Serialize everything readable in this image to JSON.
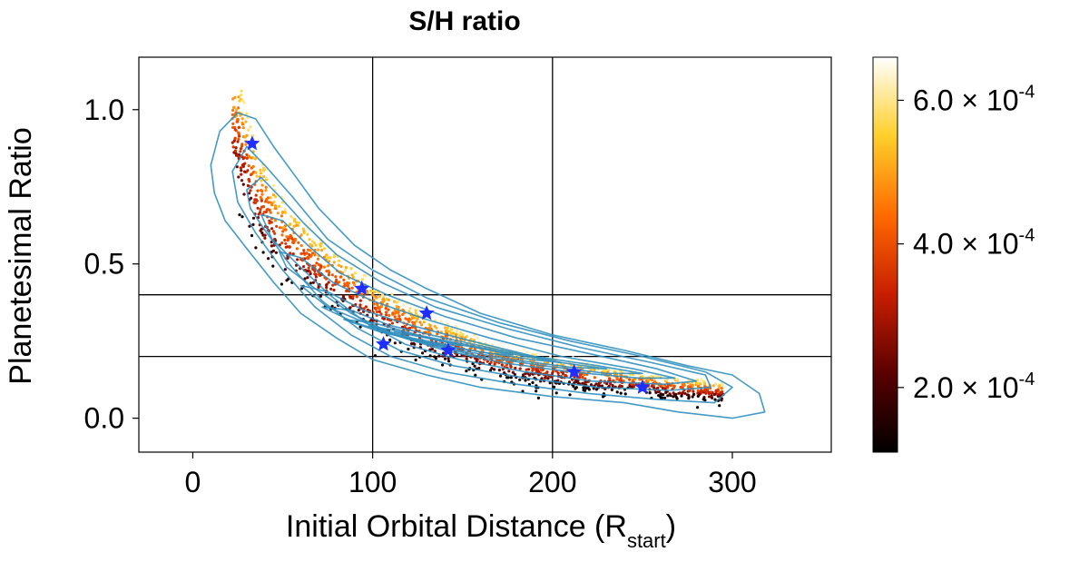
{
  "chart_data": {
    "type": "scatter",
    "title": "S/H ratio",
    "xlabel_main": "Initial Orbital Distance (R",
    "xlabel_sub": "start",
    "xlabel_close": ")",
    "ylabel": "Planetesimal Ratio",
    "xlim": [
      -30,
      355
    ],
    "ylim": [
      -0.11,
      1.17
    ],
    "x_ticks": [
      {
        "value": 0,
        "label": "0"
      },
      {
        "value": 100,
        "label": "100"
      },
      {
        "value": 200,
        "label": "200"
      },
      {
        "value": 300,
        "label": "300"
      }
    ],
    "y_ticks": [
      {
        "value": 0.0,
        "label": "0.0"
      },
      {
        "value": 0.5,
        "label": "0.5"
      },
      {
        "value": 1.0,
        "label": "1.0"
      }
    ],
    "reference_lines": {
      "vertical_x": [
        100,
        200
      ],
      "horizontal_y": [
        0.2,
        0.4
      ]
    },
    "colorbar": {
      "colormap": "afmhot",
      "range": [
        0.00011,
        0.00066
      ],
      "ticks": [
        {
          "value": 0.0002,
          "mantissa": "2.0 × 10",
          "exponent": "-4"
        },
        {
          "value": 0.0004,
          "mantissa": "4.0 × 10",
          "exponent": "-4"
        },
        {
          "value": 0.0006,
          "mantissa": "6.0 × 10",
          "exponent": "-4"
        }
      ]
    },
    "scatter_trend": {
      "x_range": [
        22,
        295
      ],
      "ridge": [
        [
          25,
          0.95
        ],
        [
          35,
          0.75
        ],
        [
          50,
          0.6
        ],
        [
          70,
          0.5
        ],
        [
          100,
          0.37
        ],
        [
          130,
          0.28
        ],
        [
          170,
          0.19
        ],
        [
          220,
          0.14
        ],
        [
          260,
          0.11
        ],
        [
          295,
          0.09
        ]
      ],
      "n_points": 1700
    },
    "contour_levels": [
      [
        [
          10,
          0.82
        ],
        [
          15,
          0.93
        ],
        [
          25,
          0.99
        ],
        [
          35,
          0.97
        ],
        [
          45,
          0.88
        ],
        [
          55,
          0.8
        ],
        [
          70,
          0.68
        ],
        [
          90,
          0.56
        ],
        [
          110,
          0.48
        ],
        [
          130,
          0.42
        ],
        [
          160,
          0.34
        ],
        [
          200,
          0.27
        ],
        [
          240,
          0.22
        ],
        [
          275,
          0.17
        ],
        [
          300,
          0.14
        ],
        [
          315,
          0.08
        ],
        [
          318,
          0.02
        ],
        [
          300,
          0.0
        ],
        [
          270,
          0.02
        ],
        [
          240,
          0.05
        ],
        [
          200,
          0.07
        ],
        [
          160,
          0.1
        ],
        [
          130,
          0.14
        ],
        [
          100,
          0.19
        ],
        [
          80,
          0.26
        ],
        [
          60,
          0.34
        ],
        [
          45,
          0.44
        ],
        [
          30,
          0.55
        ],
        [
          18,
          0.64
        ],
        [
          12,
          0.73
        ],
        [
          10,
          0.82
        ]
      ],
      [
        [
          22,
          0.8
        ],
        [
          30,
          0.88
        ],
        [
          40,
          0.82
        ],
        [
          55,
          0.72
        ],
        [
          75,
          0.58
        ],
        [
          100,
          0.48
        ],
        [
          130,
          0.39
        ],
        [
          170,
          0.31
        ],
        [
          210,
          0.25
        ],
        [
          250,
          0.2
        ],
        [
          285,
          0.15
        ],
        [
          300,
          0.1
        ],
        [
          290,
          0.05
        ],
        [
          260,
          0.06
        ],
        [
          220,
          0.08
        ],
        [
          180,
          0.11
        ],
        [
          140,
          0.15
        ],
        [
          110,
          0.2
        ],
        [
          88,
          0.27
        ],
        [
          68,
          0.36
        ],
        [
          50,
          0.48
        ],
        [
          35,
          0.6
        ],
        [
          25,
          0.7
        ],
        [
          22,
          0.8
        ]
      ],
      [
        [
          30,
          0.74
        ],
        [
          38,
          0.78
        ],
        [
          48,
          0.72
        ],
        [
          62,
          0.63
        ],
        [
          80,
          0.53
        ],
        [
          105,
          0.44
        ],
        [
          135,
          0.36
        ],
        [
          175,
          0.29
        ],
        [
          215,
          0.23
        ],
        [
          255,
          0.18
        ],
        [
          285,
          0.14
        ],
        [
          288,
          0.1
        ],
        [
          265,
          0.09
        ],
        [
          225,
          0.1
        ],
        [
          185,
          0.13
        ],
        [
          145,
          0.17
        ],
        [
          115,
          0.22
        ],
        [
          92,
          0.29
        ],
        [
          72,
          0.38
        ],
        [
          55,
          0.49
        ],
        [
          40,
          0.61
        ],
        [
          32,
          0.68
        ],
        [
          30,
          0.74
        ]
      ],
      [
        [
          38,
          0.66
        ],
        [
          50,
          0.64
        ],
        [
          64,
          0.56
        ],
        [
          82,
          0.47
        ],
        [
          108,
          0.4
        ],
        [
          140,
          0.33
        ],
        [
          180,
          0.26
        ],
        [
          220,
          0.21
        ],
        [
          258,
          0.16
        ],
        [
          280,
          0.12
        ],
        [
          262,
          0.11
        ],
        [
          222,
          0.12
        ],
        [
          185,
          0.15
        ],
        [
          148,
          0.19
        ],
        [
          118,
          0.24
        ],
        [
          96,
          0.31
        ],
        [
          76,
          0.4
        ],
        [
          58,
          0.5
        ],
        [
          44,
          0.58
        ],
        [
          38,
          0.66
        ]
      ],
      [
        [
          48,
          0.54
        ],
        [
          60,
          0.52
        ],
        [
          78,
          0.44
        ],
        [
          100,
          0.38
        ],
        [
          130,
          0.32
        ],
        [
          165,
          0.26
        ],
        [
          205,
          0.2
        ],
        [
          245,
          0.16
        ],
        [
          268,
          0.13
        ],
        [
          248,
          0.13
        ],
        [
          210,
          0.15
        ],
        [
          172,
          0.18
        ],
        [
          140,
          0.22
        ],
        [
          112,
          0.27
        ],
        [
          88,
          0.34
        ],
        [
          68,
          0.42
        ],
        [
          52,
          0.49
        ],
        [
          48,
          0.54
        ]
      ],
      [
        [
          60,
          0.43
        ],
        [
          75,
          0.41
        ],
        [
          95,
          0.35
        ],
        [
          122,
          0.3
        ],
        [
          155,
          0.25
        ],
        [
          190,
          0.2
        ],
        [
          225,
          0.17
        ],
        [
          250,
          0.145
        ],
        [
          230,
          0.145
        ],
        [
          195,
          0.17
        ],
        [
          160,
          0.2
        ],
        [
          130,
          0.24
        ],
        [
          100,
          0.3
        ],
        [
          75,
          0.36
        ],
        [
          60,
          0.43
        ]
      ],
      [
        [
          72,
          0.36
        ],
        [
          88,
          0.35
        ],
        [
          110,
          0.3
        ],
        [
          140,
          0.26
        ],
        [
          172,
          0.22
        ],
        [
          205,
          0.18
        ],
        [
          230,
          0.16
        ],
        [
          210,
          0.165
        ],
        [
          178,
          0.19
        ],
        [
          148,
          0.22
        ],
        [
          118,
          0.26
        ],
        [
          90,
          0.31
        ],
        [
          72,
          0.36
        ]
      ],
      [
        [
          84,
          0.32
        ],
        [
          100,
          0.31
        ],
        [
          125,
          0.27
        ],
        [
          155,
          0.235
        ],
        [
          185,
          0.2
        ],
        [
          205,
          0.18
        ],
        [
          188,
          0.19
        ],
        [
          160,
          0.215
        ],
        [
          130,
          0.245
        ],
        [
          104,
          0.28
        ],
        [
          84,
          0.32
        ]
      ],
      [
        [
          98,
          0.3
        ],
        [
          112,
          0.285
        ],
        [
          138,
          0.25
        ],
        [
          165,
          0.22
        ],
        [
          178,
          0.205
        ],
        [
          165,
          0.21
        ],
        [
          140,
          0.235
        ],
        [
          115,
          0.265
        ],
        [
          98,
          0.3
        ]
      ],
      [
        [
          112,
          0.28
        ],
        [
          130,
          0.26
        ],
        [
          150,
          0.235
        ],
        [
          140,
          0.24
        ],
        [
          122,
          0.26
        ],
        [
          112,
          0.28
        ]
      ]
    ],
    "highlighted_points": [
      {
        "x": 33,
        "y": 0.89
      },
      {
        "x": 94,
        "y": 0.42
      },
      {
        "x": 130,
        "y": 0.34
      },
      {
        "x": 106,
        "y": 0.24
      },
      {
        "x": 142,
        "y": 0.22
      },
      {
        "x": 212,
        "y": 0.15
      },
      {
        "x": 250,
        "y": 0.1
      }
    ],
    "colors": {
      "contour": "#2f8fbf",
      "stars": "#1f2fff",
      "reference_lines": "#000000"
    }
  }
}
